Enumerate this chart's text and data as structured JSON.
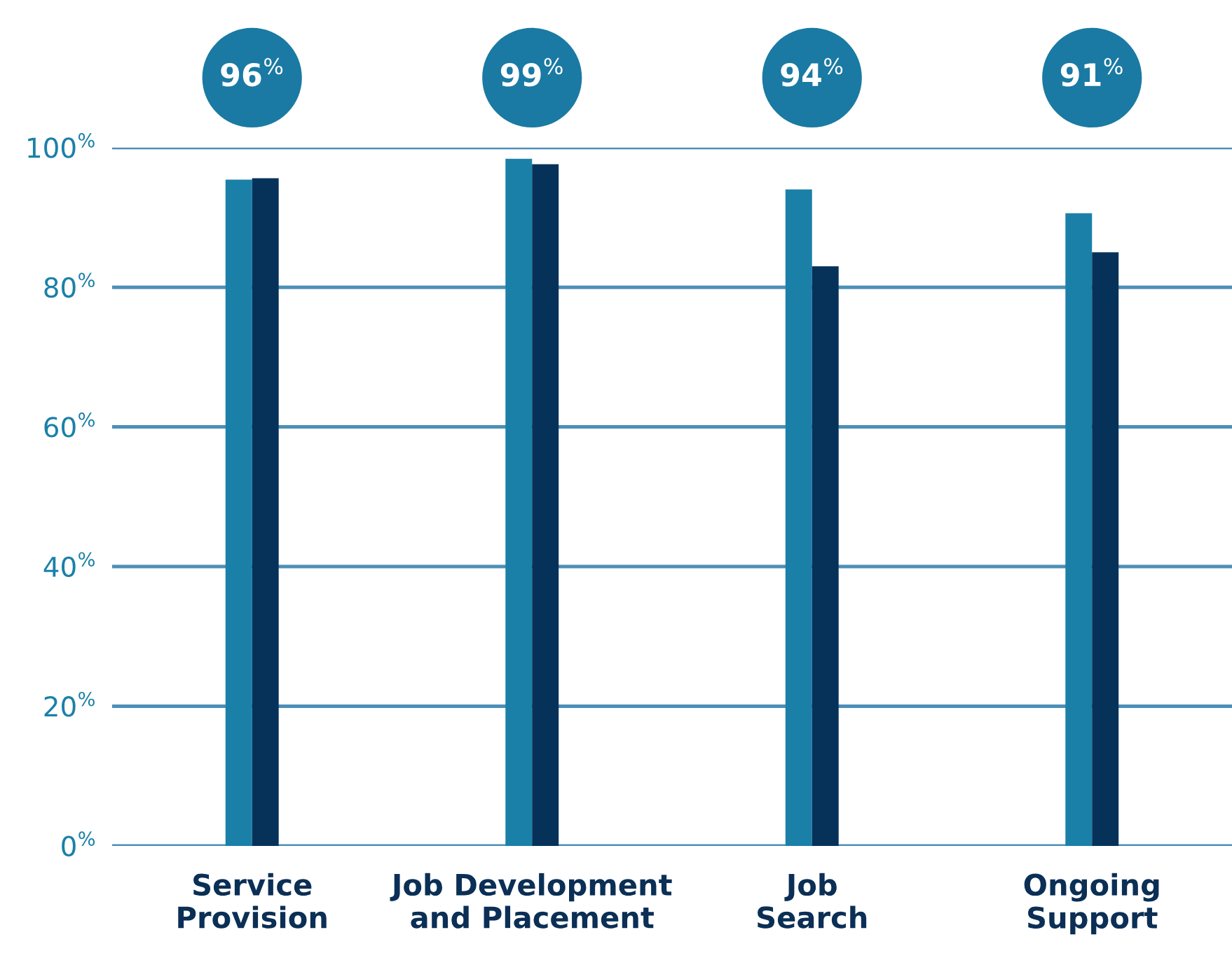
{
  "chart_data": {
    "type": "bar",
    "categories": [
      "Service\nProvision",
      "Job Development\nand Placement",
      "Job\nSearch",
      "Ongoing\nSupport"
    ],
    "series": [
      {
        "color": "#1a80a8",
        "values": [
          95.4,
          98.4,
          94.0,
          90.6
        ]
      },
      {
        "color": "#06325a",
        "values": [
          95.6,
          97.6,
          83.0,
          85.0
        ]
      }
    ],
    "ylim": [
      0,
      100
    ],
    "yticks": [
      {
        "value": 0,
        "label": "0$^{%}$"
      },
      {
        "value": 20,
        "label": "20$^{%}$"
      },
      {
        "value": 40,
        "label": "40$^{%}$"
      },
      {
        "value": 60,
        "label": "60$^{%}$"
      },
      {
        "value": 80,
        "label": "80$^{%}$"
      },
      {
        "value": 100,
        "label": "100$^{%}$"
      }
    ],
    "grid": "y",
    "annotations": [
      "96$^{%}$",
      "99$^{%}$",
      "94$^{%}$",
      "91$^{%}$"
    ]
  }
}
